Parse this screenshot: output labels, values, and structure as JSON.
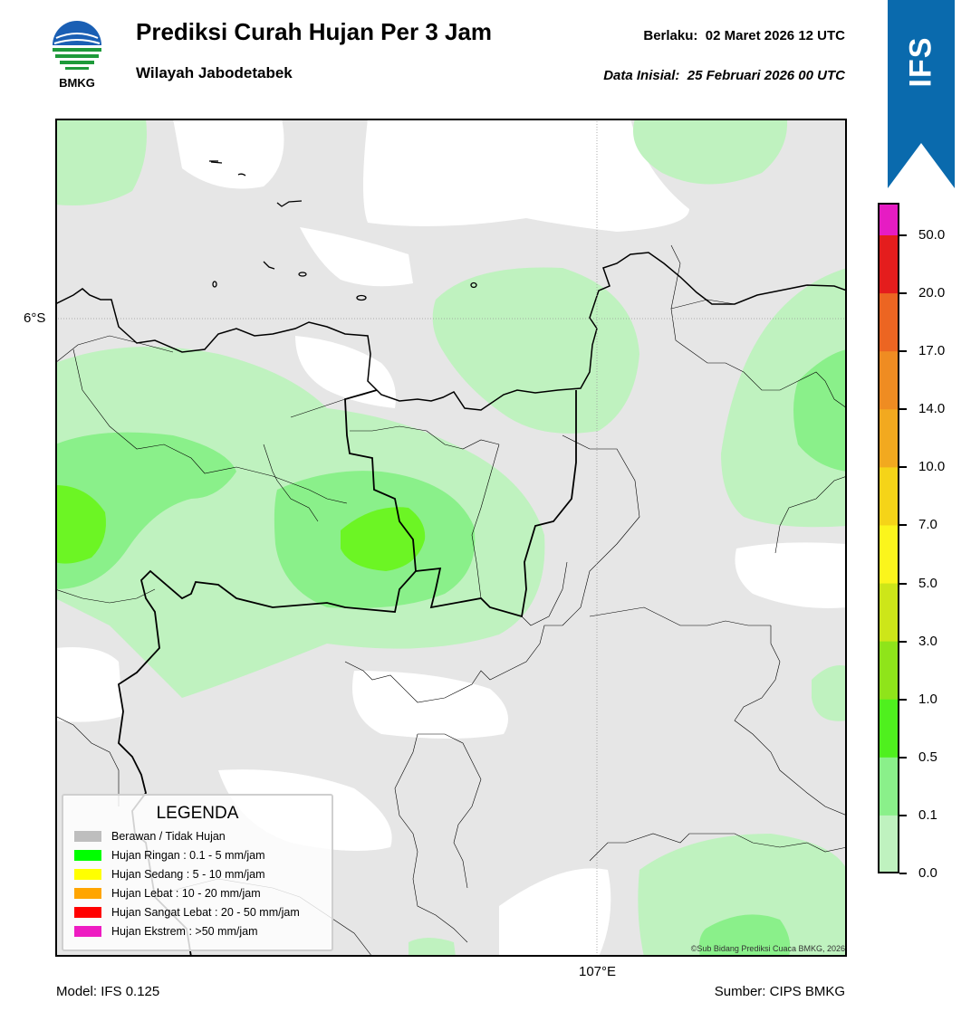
{
  "header": {
    "logo_text": "BMKG",
    "title": "Prediksi Curah Hujan Per 3 Jam",
    "subtitle": "Wilayah Jabodetabek",
    "valid_label": "Berlaku:",
    "valid_value": "02 Maret 2026 12 UTC",
    "init_label": "Data Inisial:",
    "init_value": "25 Februari 2026 00 UTC"
  },
  "badge": {
    "text": "IFS",
    "color": "#0a6aad"
  },
  "map": {
    "lat_label": "6°S",
    "lon_label": "107°E",
    "copyright": "©Sub Bidang Prediksi Cuaca BMKG, 2026",
    "colors": {
      "cloudy": "#e6e6e6",
      "light_0_1": "#bff2bf",
      "light_0_5": "#8af08a",
      "light_1_0": "#6cf524"
    }
  },
  "legend": {
    "title": "LEGENDA",
    "items": [
      {
        "label": "Berawan / Tidak Hujan",
        "color": "#bebebe"
      },
      {
        "label": "Hujan Ringan : 0.1 - 5 mm/jam",
        "color": "#00ff00"
      },
      {
        "label": "Hujan Sedang : 5 - 10 mm/jam",
        "color": "#ffff00"
      },
      {
        "label": "Hujan Lebat : 10 - 20 mm/jam",
        "color": "#ffa500"
      },
      {
        "label": "Hujan Sangat Lebat : 20 - 50 mm/jam",
        "color": "#ff0000"
      },
      {
        "label": "Hujan Ekstrem : >50 mm/jam",
        "color": "#ee1cc2"
      }
    ]
  },
  "colorbar": {
    "ticks": [
      "0.0",
      "0.1",
      "0.5",
      "1.0",
      "3.0",
      "5.0",
      "7.0",
      "10.0",
      "14.0",
      "17.0",
      "20.0",
      "50.0"
    ],
    "colors": [
      "#e6e6e6",
      "#bff2bf",
      "#8af08a",
      "#4ff01e",
      "#8fe41a",
      "#cde619",
      "#fbf51c",
      "#f5d418",
      "#f2a91f",
      "#ef8c22",
      "#ec6522",
      "#e41d1d",
      "#e61cc3"
    ]
  },
  "footer": {
    "model": "Model: IFS 0.125",
    "source": "Sumber: CIPS BMKG"
  }
}
